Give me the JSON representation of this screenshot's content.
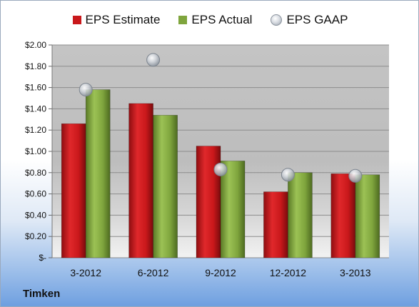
{
  "chart_data": {
    "type": "bar",
    "categories": [
      "3-2012",
      "6-2012",
      "9-2012",
      "12-2012",
      "3-2013"
    ],
    "series": [
      {
        "name": "EPS Estimate",
        "values": [
          1.26,
          1.45,
          1.05,
          0.62,
          0.79
        ],
        "color": "#c9181b"
      },
      {
        "name": "EPS Actual",
        "values": [
          1.58,
          1.34,
          0.91,
          0.8,
          0.78
        ],
        "color": "#7fa53d"
      },
      {
        "name": "EPS GAAP",
        "values": [
          1.58,
          1.86,
          0.83,
          0.78,
          0.77
        ],
        "color": "#b9bec6",
        "marker": "circle"
      }
    ],
    "yticks": [
      "$2.00",
      "$1.80",
      "$1.60",
      "$1.40",
      "$1.20",
      "$1.00",
      "$0.80",
      "$0.60",
      "$0.40",
      "$0.20",
      "$-"
    ],
    "ylim": [
      0,
      2.0
    ],
    "grid": true,
    "legend": "top-center",
    "company": "Timken"
  }
}
